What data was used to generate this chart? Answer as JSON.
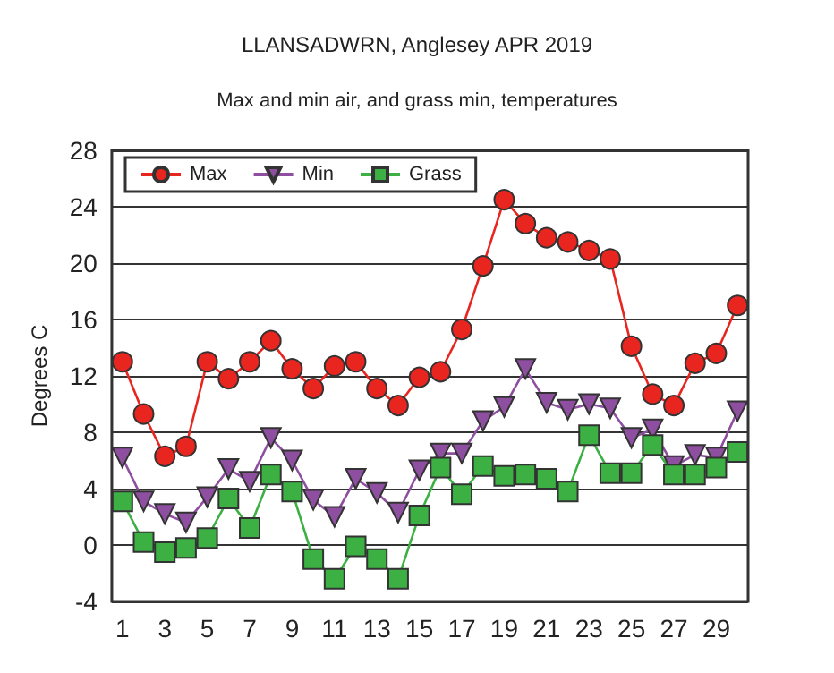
{
  "chart_data": {
    "type": "line",
    "title": "LLANSADWRN, Anglesey APR 2019",
    "subtitle": "Max and min air, and grass min, temperatures",
    "ylabel": "Degrees C",
    "x": [
      1,
      2,
      3,
      4,
      5,
      6,
      7,
      8,
      9,
      10,
      11,
      12,
      13,
      14,
      15,
      16,
      17,
      18,
      19,
      20,
      21,
      22,
      23,
      24,
      25,
      26,
      27,
      28,
      29,
      30
    ],
    "xlim": [
      0.5,
      30.5
    ],
    "xticks": [
      1,
      3,
      5,
      7,
      9,
      11,
      13,
      15,
      17,
      19,
      21,
      23,
      25,
      27,
      29
    ],
    "series": [
      {
        "name": "Max",
        "color": "#e8251f",
        "marker": "circle",
        "values": [
          13,
          9.3,
          6.3,
          7,
          13,
          11.8,
          13,
          14.5,
          12.5,
          11.1,
          12.7,
          13,
          11.1,
          9.9,
          11.9,
          12.3,
          15.3,
          19.8,
          24.5,
          22.8,
          21.8,
          21.5,
          20.9,
          20.3,
          14.1,
          10.7,
          9.9,
          12.9,
          13.6,
          17
        ]
      },
      {
        "name": "Min",
        "color": "#8e4fa0",
        "marker": "triangle-down",
        "values": [
          6.2,
          3.1,
          2.2,
          1.6,
          3.4,
          5.4,
          4.5,
          7.6,
          6,
          3.2,
          2,
          4.7,
          3.7,
          2.3,
          5.3,
          6.5,
          6.5,
          8.8,
          9.8,
          12.5,
          10.1,
          9.6,
          10,
          9.7,
          7.6,
          8.2,
          5.6,
          6.4,
          6.2,
          9.5
        ]
      },
      {
        "name": "Grass",
        "color": "#3cb043",
        "marker": "square",
        "values": [
          3.1,
          0.2,
          -0.5,
          -0.2,
          0.5,
          3.3,
          1.2,
          5,
          3.8,
          -1,
          -2.4,
          -0.1,
          -1,
          -2.4,
          2.1,
          5.5,
          3.6,
          5.6,
          4.9,
          5,
          4.7,
          3.8,
          7.8,
          5.1,
          5.1,
          7.1,
          5,
          5,
          5.5,
          6.6
        ]
      }
    ],
    "ylim": [
      -4,
      28
    ],
    "yticks": [
      -4,
      0,
      4,
      8,
      12,
      16,
      20,
      24,
      28
    ],
    "grid": "y",
    "legend": "top left"
  }
}
